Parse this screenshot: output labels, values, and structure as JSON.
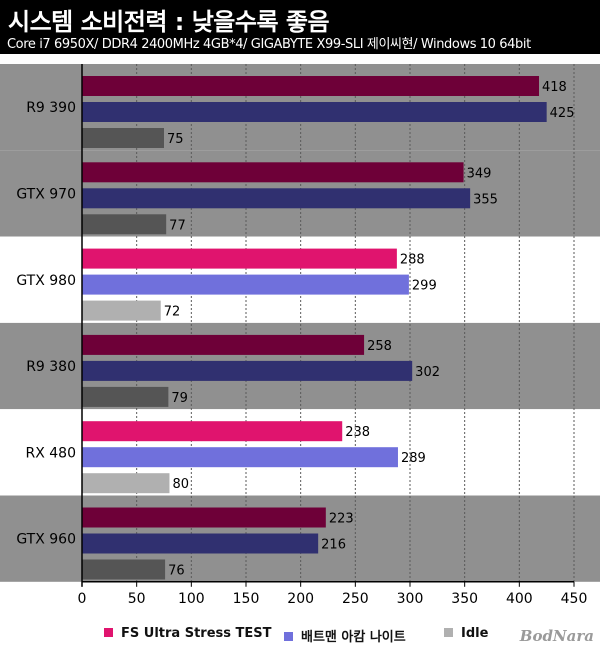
{
  "title": "시스템 소비전력 : 낮을수록 좋음",
  "subtitle": "Core i7 6950X/ DDR4 2400MHz 4GB*4/ GIGABYTE X99-SLI 제이씨현/ Windows 10 64bit",
  "watermark": "BodNara",
  "colors": {
    "band_dark": "#909090",
    "band_light": "#ffffff",
    "highlight_series": [
      "#e0146e",
      "#7070dc",
      "#b0b0b0"
    ],
    "muted_series": [
      "#6e0038",
      "#303070",
      "#555555"
    ]
  },
  "chart_data": {
    "type": "bar",
    "orientation": "horizontal",
    "title": "시스템 소비전력 : 낮을수록 좋음",
    "categories": [
      "R9 390",
      "GTX 970",
      "GTX 980",
      "R9 380",
      "RX 480",
      "GTX 960"
    ],
    "highlighted": [
      false,
      false,
      true,
      false,
      true,
      false
    ],
    "series": [
      {
        "name": "FS Ultra Stress TEST",
        "values": [
          418,
          349,
          288,
          258,
          238,
          223
        ]
      },
      {
        "name": "배트맨 아캄 나이트",
        "values": [
          425,
          355,
          299,
          302,
          289,
          216
        ]
      },
      {
        "name": "Idle",
        "values": [
          75,
          77,
          72,
          79,
          80,
          76
        ]
      }
    ],
    "xlim": [
      0,
      450
    ],
    "xticks": [
      0,
      50,
      100,
      150,
      200,
      250,
      300,
      350,
      400,
      450
    ],
    "grid": true,
    "legend_position": "bottom"
  }
}
